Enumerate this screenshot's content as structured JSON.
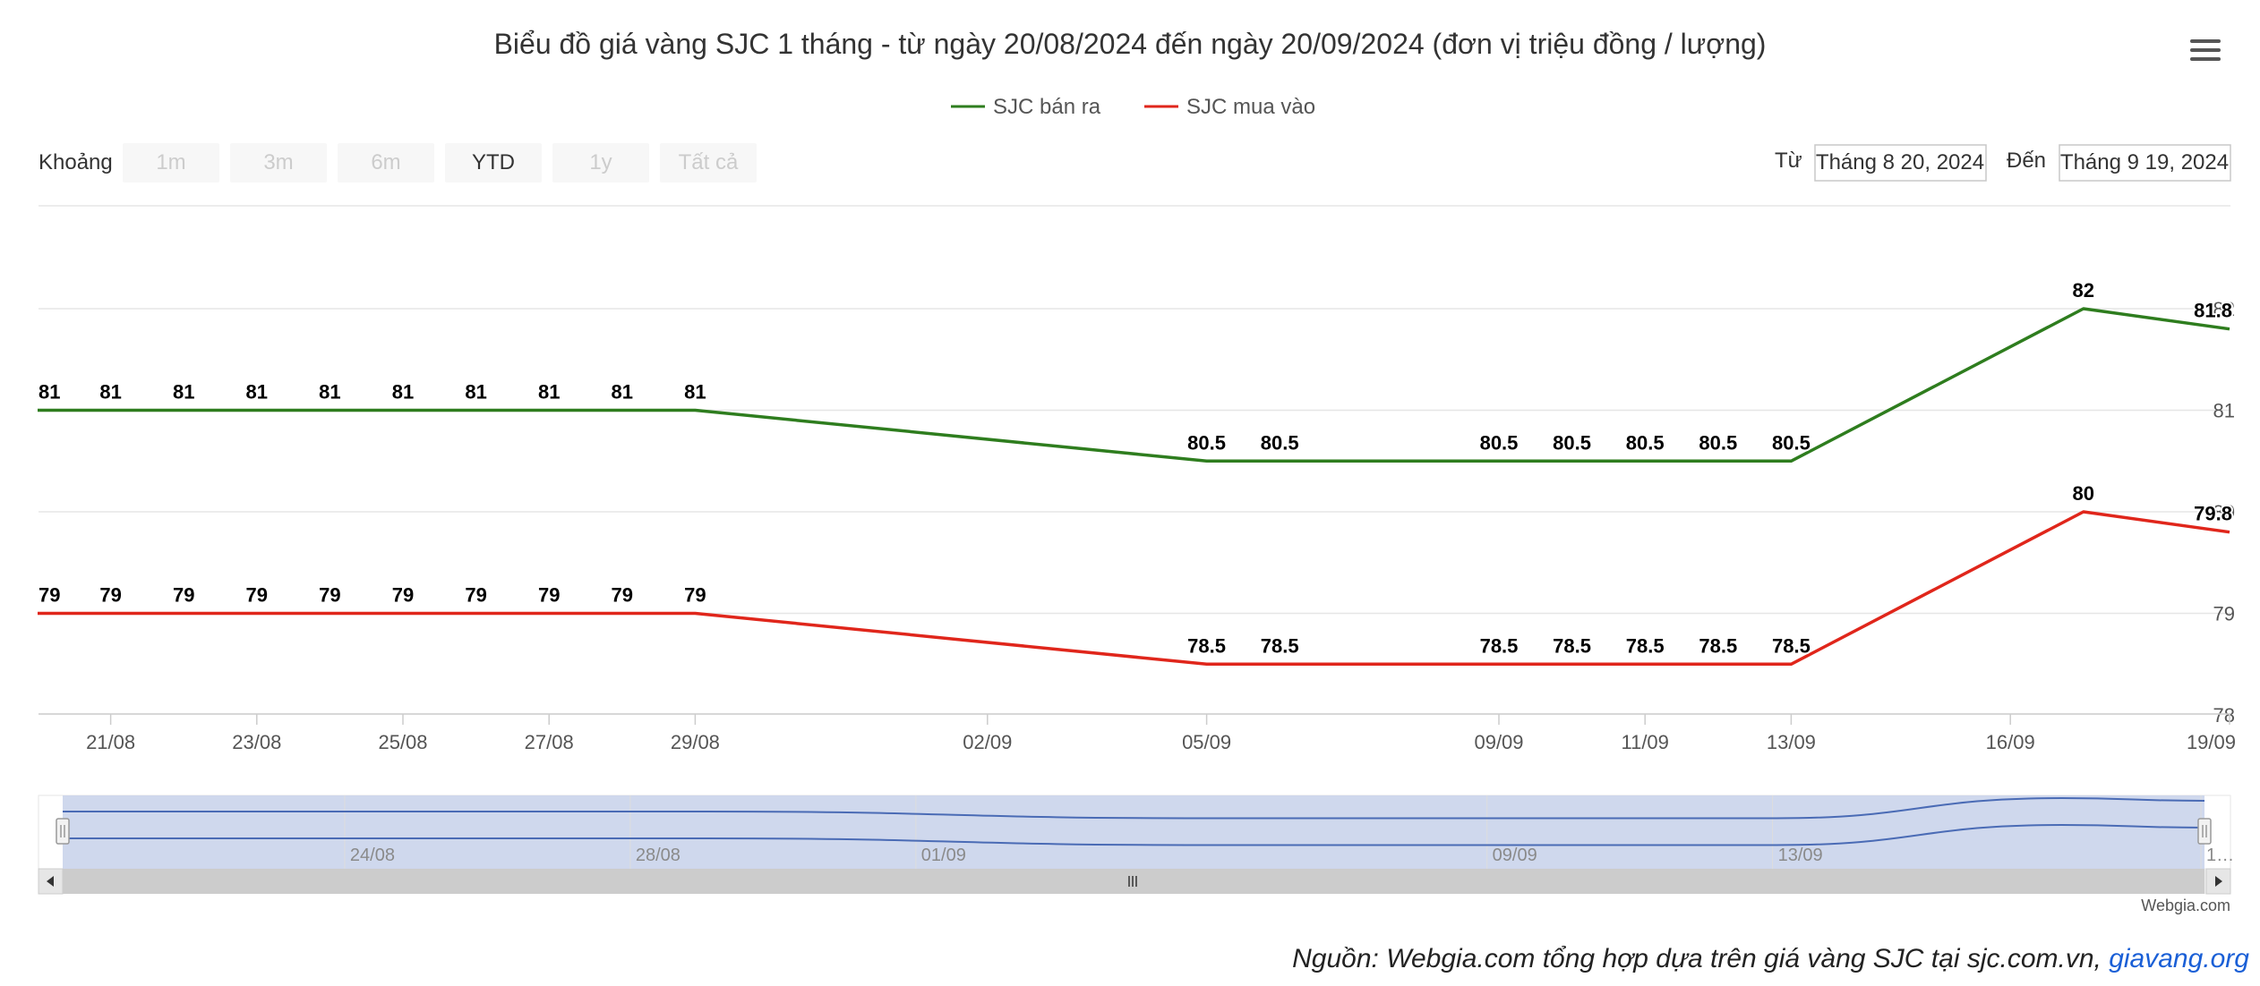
{
  "chart_data": {
    "type": "line",
    "title": "Biểu đồ giá vàng SJC 1 tháng - từ ngày 20/08/2024 đến ngày 20/09/2024 (đơn vị triệu đồng / lượng)",
    "xlabel": "",
    "ylabel": "",
    "x": [
      "20/08/2024",
      "21/08/2024",
      "22/08/2024",
      "23/08/2024",
      "24/08/2024",
      "25/08/2024",
      "26/08/2024",
      "27/08/2024",
      "28/08/2024",
      "29/08/2024",
      "05/09/2024",
      "06/09/2024",
      "09/09/2024",
      "10/09/2024",
      "11/09/2024",
      "12/09/2024",
      "13/09/2024",
      "17/09/2024",
      "19/09/2024"
    ],
    "series": [
      {
        "name": "SJC bán ra",
        "color": "#2e7d1e",
        "values": [
          81,
          81,
          81,
          81,
          81,
          81,
          81,
          81,
          81,
          81,
          80.5,
          80.5,
          80.5,
          80.5,
          80.5,
          80.5,
          80.5,
          82,
          81.8
        ],
        "labels": [
          "81",
          "81",
          "81",
          "81",
          "81",
          "81",
          "81",
          "81",
          "81",
          "81",
          "80.5",
          "80.5",
          "80.5",
          "80.5",
          "80.5",
          "80.5",
          "80.5",
          "82",
          "81.8"
        ]
      },
      {
        "name": "SJC mua vào",
        "color": "#e0261b",
        "values": [
          79,
          79,
          79,
          79,
          79,
          79,
          79,
          79,
          79,
          79,
          78.5,
          78.5,
          78.5,
          78.5,
          78.5,
          78.5,
          78.5,
          80,
          79.8
        ],
        "labels": [
          "79",
          "79",
          "79",
          "79",
          "79",
          "79",
          "79",
          "79",
          "79",
          "79",
          "78.5",
          "78.5",
          "78.5",
          "78.5",
          "78.5",
          "78.5",
          "78.5",
          "80",
          "79.8"
        ]
      }
    ],
    "ylim": [
      78,
      82
    ],
    "y_ticks": [
      "78",
      "79",
      "80",
      "81",
      "82"
    ],
    "x_ticks": [
      {
        "label": "21/08",
        "date": "21/08/2024"
      },
      {
        "label": "23/08",
        "date": "23/08/2024"
      },
      {
        "label": "25/08",
        "date": "25/08/2024"
      },
      {
        "label": "27/08",
        "date": "27/08/2024"
      },
      {
        "label": "29/08",
        "date": "29/08/2024"
      },
      {
        "label": "02/09",
        "date": "02/09/2024"
      },
      {
        "label": "05/09",
        "date": "05/09/2024"
      },
      {
        "label": "09/09",
        "date": "09/09/2024"
      },
      {
        "label": "11/09",
        "date": "11/09/2024"
      },
      {
        "label": "13/09",
        "date": "13/09/2024"
      },
      {
        "label": "16/09",
        "date": "16/09/2024"
      },
      {
        "label": "19/09",
        "date": "19/09/2024"
      }
    ],
    "navigator_ticks": [
      {
        "label": "24/08",
        "date": "24/08/2024"
      },
      {
        "label": "28/08",
        "date": "28/08/2024"
      },
      {
        "label": "01/09",
        "date": "01/09/2024"
      },
      {
        "label": "09/09",
        "date": "09/09/2024"
      },
      {
        "label": "13/09",
        "date": "13/09/2024"
      },
      {
        "label": "1…",
        "date": "19/09/2024"
      }
    ],
    "grid": true,
    "legend_position": "top-center"
  },
  "controls": {
    "zoom_label": "Khoảng",
    "zoom_buttons": [
      {
        "label": "1m",
        "state": "disabled"
      },
      {
        "label": "3m",
        "state": "disabled"
      },
      {
        "label": "6m",
        "state": "disabled"
      },
      {
        "label": "YTD",
        "state": "enabled"
      },
      {
        "label": "1y",
        "state": "disabled"
      },
      {
        "label": "Tất cả",
        "state": "disabled"
      }
    ],
    "from_label": "Từ",
    "from_value": "Tháng 8 20, 2024",
    "to_label": "Đến",
    "to_value": "Tháng 9 19, 2024",
    "menu_icon": "hamburger-menu-icon"
  },
  "navigator": {
    "handle_icon": "grip-icon",
    "left_arrow_icon": "arrow-left-icon",
    "right_arrow_icon": "arrow-right-icon"
  },
  "credits": "Webgia.com",
  "footer": {
    "text": "Nguồn: Webgia.com tổng hợp dựa trên giá vàng SJC tại sjc.com.vn,",
    "link_text": "giavang.org"
  }
}
